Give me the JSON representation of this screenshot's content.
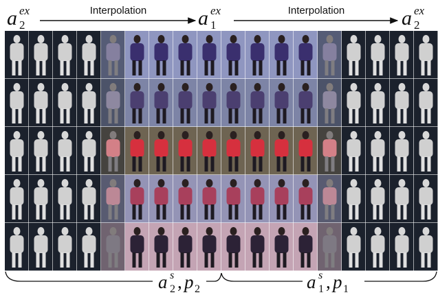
{
  "header": {
    "labels": [
      {
        "base": "a",
        "sub": "2",
        "sup": "ex"
      },
      {
        "base": "a",
        "sub": "1",
        "sup": "ex"
      },
      {
        "base": "a",
        "sub": "2",
        "sup": "ex"
      }
    ],
    "arrows": [
      "Interpolation",
      "Interpolation"
    ]
  },
  "footer": {
    "labels": [
      {
        "a": "a",
        "a_sup": "s",
        "a_sub": "2",
        "sep": ",",
        "p": "p",
        "p_sub": "2"
      },
      {
        "a": "a",
        "a_sup": "s",
        "a_sub": "1",
        "sep": ",",
        "p": "p",
        "p_sub": "1"
      }
    ]
  }
}
